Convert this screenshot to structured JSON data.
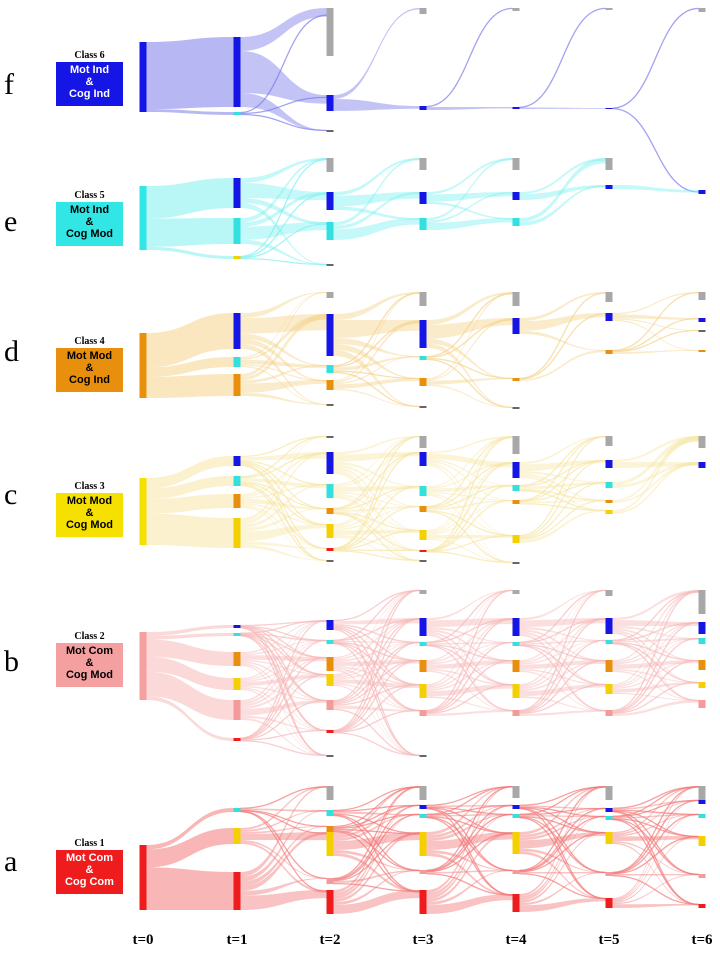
{
  "time_steps": [
    "t=0",
    "t=1",
    "t=2",
    "t=3",
    "t=4",
    "t=5",
    "t=6"
  ],
  "rows": [
    {
      "letter": "f",
      "class_title": "Class 6",
      "lines": [
        "Mot Ind",
        "&",
        "Cog Ind"
      ],
      "color": "#1515e6",
      "flow_color": "#7b7bea",
      "text_color": "#ffffff"
    },
    {
      "letter": "e",
      "class_title": "Class 5",
      "lines": [
        "Mot Ind",
        "&",
        "Cog Mod"
      ],
      "color": "#33e6e6",
      "flow_color": "#7ff0f0",
      "text_color": "#000000"
    },
    {
      "letter": "d",
      "class_title": "Class 4",
      "lines": [
        "Mot Mod",
        "&",
        "Cog Ind"
      ],
      "color": "#e8900e",
      "flow_color": "#f5d38a",
      "text_color": "#000000"
    },
    {
      "letter": "c",
      "class_title": "Class 3",
      "lines": [
        "Mot Mod",
        "&",
        "Cog Mod"
      ],
      "color": "#f5e000",
      "flow_color": "#f7e6a6",
      "text_color": "#000000"
    },
    {
      "letter": "b",
      "class_title": "Class 2",
      "lines": [
        "Mot Com",
        "&",
        "Cog Mod"
      ],
      "color": "#f4a0a0",
      "flow_color": "#f7b9b9",
      "text_color": "#000000"
    },
    {
      "letter": "a",
      "class_title": "Class 1",
      "lines": [
        "Mot Com",
        "&",
        "Cog Com"
      ],
      "color": "#ee1c1c",
      "flow_color": "#f27a7a",
      "text_color": "#ffffff"
    }
  ],
  "node_colors": {
    "class1": "#ee1c1c",
    "class2": "#f49a9a",
    "class3": "#f5d000",
    "class4": "#e8900e",
    "class5": "#33e0e0",
    "class6": "#1515e6",
    "dropout": "#a8a8a8",
    "dark": "#666666"
  }
}
